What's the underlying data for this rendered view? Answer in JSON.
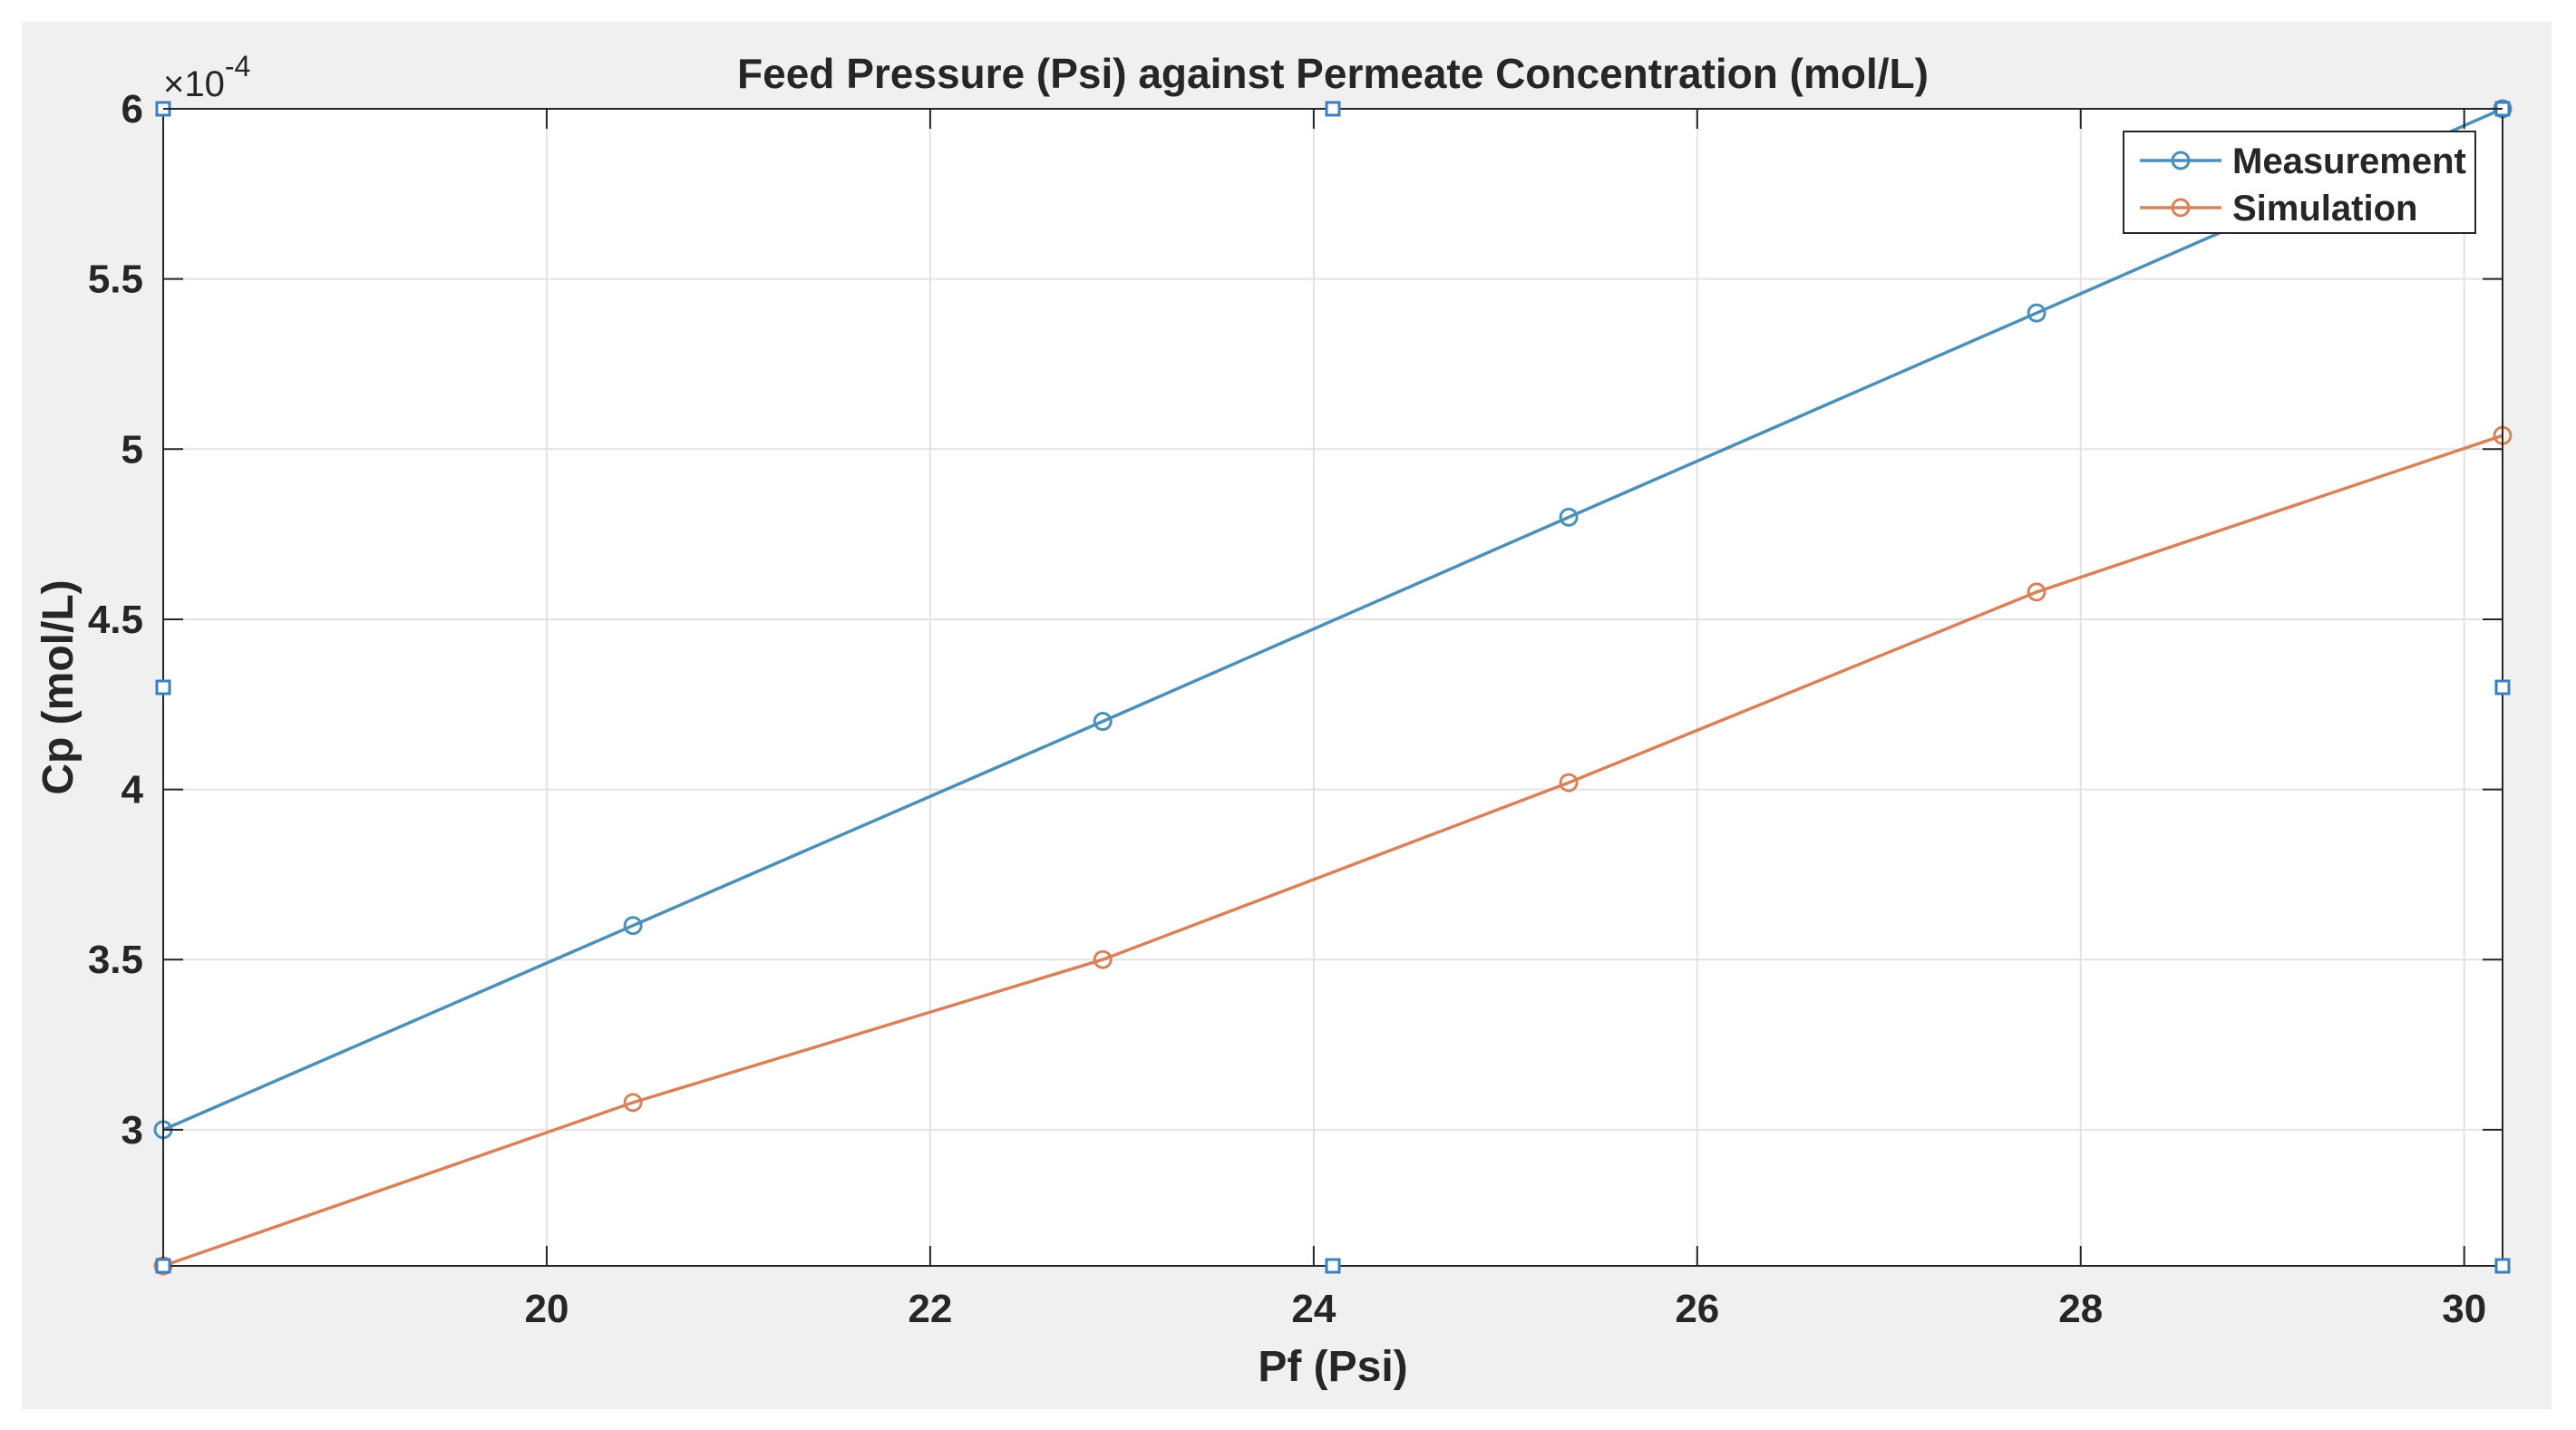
{
  "chart_data": {
    "type": "line",
    "title": "Feed Pressure (Psi) against Permeate Concentration (mol/L)",
    "xlabel": "Pf (Psi)",
    "ylabel": "Cp (mol/L)",
    "exponent_base": "×10",
    "exponent_power": "-4",
    "xlim": [
      18.0,
      30.2
    ],
    "ylim": [
      2.6,
      6.0
    ],
    "xticks": [
      20,
      22,
      24,
      26,
      28,
      30
    ],
    "xtick_labels": [
      "20",
      "22",
      "24",
      "26",
      "28",
      "30"
    ],
    "yticks": [
      3,
      3.5,
      4,
      4.5,
      5,
      5.5,
      6
    ],
    "ytick_labels": [
      "3",
      "3.5",
      "4",
      "4.5",
      "5",
      "5.5",
      "6"
    ],
    "grid": true,
    "legend_position": "top-right",
    "series": [
      {
        "name": "Measurement",
        "color": "#4a90b8",
        "x": [
          18.0,
          20.45,
          22.9,
          25.33,
          27.77,
          30.2
        ],
        "y": [
          3.0,
          3.6,
          4.2,
          4.8,
          5.4,
          6.0
        ]
      },
      {
        "name": "Simulation",
        "color": "#d9825a",
        "x": [
          18.0,
          20.45,
          22.9,
          25.33,
          27.77,
          30.2
        ],
        "y": [
          2.6,
          3.08,
          3.5,
          4.02,
          4.58,
          5.04
        ]
      }
    ],
    "edge_markers": [
      {
        "x": 18.0,
        "y": 6.0
      },
      {
        "x": 18.0,
        "y": 4.3
      },
      {
        "x": 18.0,
        "y": 2.6
      },
      {
        "x": 24.1,
        "y": 6.0
      },
      {
        "x": 24.1,
        "y": 2.6
      },
      {
        "x": 30.2,
        "y": 6.0
      },
      {
        "x": 30.2,
        "y": 4.3
      },
      {
        "x": 30.2,
        "y": 2.6
      }
    ],
    "edge_marker_color": "#3a7fc0"
  }
}
